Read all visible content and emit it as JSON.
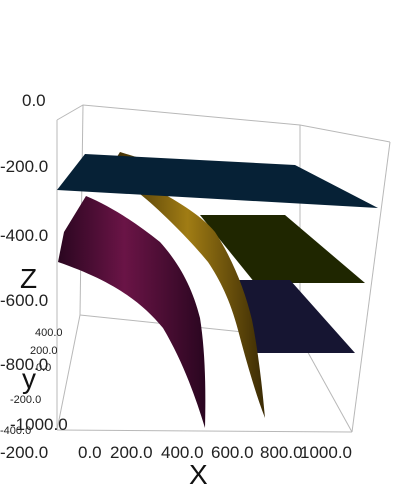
{
  "chart_data": {
    "type": "surface3d",
    "title": "",
    "xlabel": "X",
    "ylabel": "y",
    "zlabel": "Z",
    "x_ticks": [
      "-200.0",
      "0.0",
      "200.0",
      "400.0",
      "600.0",
      "800.0",
      "1000.0"
    ],
    "y_ticks": [
      "-400.0",
      "-200.0",
      "0.0",
      "200.0",
      "400.0"
    ],
    "z_ticks": [
      "-1000.0",
      "-800.0",
      "-600.0",
      "-400.0",
      "-200.0",
      "0.0"
    ],
    "xlim": [
      -200,
      1000
    ],
    "ylim": [
      -400,
      400
    ],
    "zlim": [
      -1000,
      0
    ],
    "planes": [
      {
        "z": -200,
        "color": "#062136"
      },
      {
        "z": -450,
        "color": "#1f2600"
      },
      {
        "z": -650,
        "color": "#161532"
      }
    ],
    "surfaces": [
      {
        "color": "#5a0f3a"
      },
      {
        "color": "#8a6a10"
      }
    ],
    "grid": false
  }
}
